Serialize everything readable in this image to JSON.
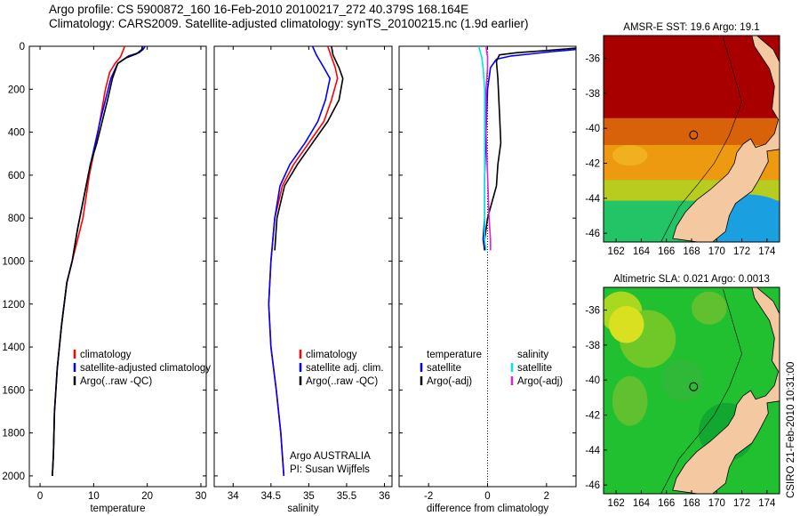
{
  "header": {
    "line1": "Argo profile: CS 5900872_160 16-Feb-2010 20100217_272 40.379S 168.164E",
    "line2": "Climatology: CARS2009. Satellite-adjusted climatology: synTS_20100215.nc (1.9d earlier)"
  },
  "colors": {
    "climatology": "#ff0000",
    "satellite": "#0000ff",
    "argo": "#000000",
    "cyan": "#00e5e5",
    "magenta": "#e020e0"
  },
  "chart_data": [
    {
      "type": "line",
      "id": "temperature",
      "xlabel": "temperature",
      "xlim": [
        -2,
        31
      ],
      "xticks": [
        0,
        10,
        20,
        30
      ],
      "ylim": [
        0,
        2050
      ],
      "yticks": [
        0,
        200,
        400,
        600,
        800,
        1000,
        1200,
        1400,
        1600,
        1800,
        2000
      ],
      "y_reversed": true,
      "legend_position": "lower-middle",
      "legend": [
        {
          "label": "climatology",
          "color": "#ff0000"
        },
        {
          "label": "satellite-adjusted climatology",
          "color": "#0000ff"
        },
        {
          "label": "Argo(..raw -QC)",
          "color": "#000000"
        }
      ],
      "series": [
        {
          "name": "climatology",
          "color": "#ff0000",
          "x": [
            15.8,
            15.5,
            15.0,
            14.0,
            13.0,
            12.2,
            11.5,
            10.8,
            10.0,
            9.2,
            8.0,
            7.0,
            6.0,
            5.0,
            4.0,
            3.2,
            2.7,
            2.5,
            2.3
          ],
          "y": [
            0,
            20,
            50,
            80,
            120,
            200,
            300,
            400,
            500,
            600,
            800,
            900,
            1000,
            1100,
            1300,
            1500,
            1700,
            1900,
            2000
          ]
        },
        {
          "name": "satellite-adjusted climatology",
          "color": "#0000ff",
          "x": [
            19.6,
            19.2,
            18.5,
            16.5,
            14.5,
            13.2,
            12.2,
            11.2,
            10.3,
            9.4,
            8.2,
            7.0,
            6.0,
            5.0,
            4.0,
            3.2,
            2.7,
            2.5,
            2.3
          ],
          "y": [
            0,
            15,
            30,
            45,
            80,
            150,
            250,
            350,
            450,
            550,
            700,
            850,
            1000,
            1100,
            1300,
            1500,
            1700,
            1900,
            2000
          ]
        },
        {
          "name": "Argo(..raw -QC)",
          "color": "#000000",
          "x": [
            19.1,
            19.0,
            18.0,
            16.0,
            14.5,
            13.5,
            12.6,
            11.6,
            10.6,
            9.4,
            8.2,
            7.0,
            6.0,
            5.0,
            4.0,
            3.2,
            2.7,
            2.5,
            2.3
          ],
          "y": [
            0,
            15,
            35,
            55,
            80,
            150,
            250,
            350,
            450,
            550,
            700,
            850,
            1000,
            1100,
            1300,
            1500,
            1700,
            1900,
            2000
          ]
        }
      ]
    },
    {
      "type": "line",
      "id": "salinity",
      "xlabel": "salinity",
      "xlim": [
        33.75,
        36.1
      ],
      "xticks": [
        34,
        34.5,
        35,
        35.5,
        36
      ],
      "ylim": [
        0,
        2050
      ],
      "y_reversed": true,
      "legend_position": "lower-right",
      "legend": [
        {
          "label": "climatology",
          "color": "#ff0000"
        },
        {
          "label": "satellite adj. clim.",
          "color": "#0000ff"
        },
        {
          "label": "Argo(..raw -QC)",
          "color": "#000000"
        }
      ],
      "annotation": [
        "Argo AUSTRALIA",
        "PI: Susan Wijffels"
      ],
      "series": [
        {
          "name": "climatology",
          "color": "#ff0000",
          "x": [
            35.25,
            35.3,
            35.35,
            35.38,
            35.3,
            35.2,
            35.0,
            34.8,
            34.65,
            34.55,
            34.5,
            34.47,
            34.5,
            34.57,
            34.63,
            34.67
          ],
          "y": [
            0,
            50,
            100,
            150,
            250,
            350,
            450,
            550,
            650,
            800,
            1000,
            1200,
            1400,
            1600,
            1800,
            2000
          ]
        },
        {
          "name": "satellite adj. clim.",
          "color": "#0000ff",
          "x": [
            35.05,
            35.1,
            35.2,
            35.28,
            35.22,
            35.12,
            34.95,
            34.75,
            34.62,
            34.55,
            34.5,
            34.47,
            34.5,
            34.57,
            34.63,
            34.67
          ],
          "y": [
            0,
            40,
            100,
            150,
            250,
            350,
            450,
            550,
            650,
            800,
            1000,
            1200,
            1400,
            1600,
            1800,
            2000
          ]
        },
        {
          "name": "Argo(..raw -QC)",
          "color": "#000000",
          "x": [
            35.3,
            35.32,
            35.4,
            35.45,
            35.4,
            35.25,
            35.05,
            34.85,
            34.68,
            34.58,
            34.55
          ],
          "y": [
            0,
            40,
            100,
            150,
            250,
            350,
            450,
            550,
            650,
            800,
            950
          ]
        }
      ]
    },
    {
      "type": "line",
      "id": "difference",
      "xlabel": "difference from climatology",
      "xlim": [
        -3,
        3
      ],
      "xticks": [
        -2,
        0,
        2
      ],
      "ylim": [
        0,
        2050
      ],
      "y_reversed": true,
      "legend_position": "lower",
      "legend": [
        {
          "label": "temperature",
          "color": ""
        },
        {
          "label": "satellite",
          "color": "#0000ff"
        },
        {
          "label": "Argo(-adj)",
          "color": "#000000"
        },
        {
          "label": "salinity",
          "color": ""
        },
        {
          "label": "satellite",
          "color": "#00e5e5"
        },
        {
          "label": "Argo(-adj)",
          "color": "#e020e0"
        }
      ],
      "series": [
        {
          "name": "temperature satellite",
          "color": "#0000ff",
          "x": [
            3.5,
            3.0,
            2.2,
            1.5,
            0.8,
            0.3,
            0.1,
            0.0,
            -0.05,
            -0.1,
            -0.1,
            -0.15,
            -0.1
          ],
          "y": [
            5,
            15,
            25,
            35,
            45,
            60,
            100,
            200,
            400,
            600,
            800,
            900,
            950
          ]
        },
        {
          "name": "temperature Argo(-adj)",
          "color": "#000000",
          "x": [
            3.3,
            2.0,
            1.0,
            0.4,
            0.3,
            0.35,
            0.4,
            0.45,
            0.35,
            0.3,
            0.0,
            -0.1,
            -0.1
          ],
          "y": [
            5,
            20,
            30,
            40,
            70,
            150,
            300,
            450,
            550,
            650,
            800,
            900,
            950
          ]
        },
        {
          "name": "salinity satellite",
          "color": "#00e5e5",
          "x": [
            -0.3,
            -0.2,
            -0.15,
            -0.1,
            -0.1,
            -0.1,
            -0.1,
            -0.1,
            -0.05
          ],
          "y": [
            0,
            50,
            100,
            200,
            400,
            600,
            800,
            900,
            950
          ]
        },
        {
          "name": "salinity Argo(-adj)",
          "color": "#e020e0",
          "x": [
            -0.05,
            0.0,
            0.0,
            -0.05,
            -0.05,
            0.0,
            0.05,
            0.1,
            0.1
          ],
          "y": [
            0,
            50,
            100,
            200,
            400,
            600,
            800,
            900,
            950
          ]
        }
      ]
    },
    {
      "type": "heatmap",
      "id": "sst-map",
      "title": "AMSR-E SST: 19.6 Argo: 19.1",
      "xticks": [
        162,
        164,
        166,
        168,
        170,
        172,
        174
      ],
      "yticks": [
        -36,
        -38,
        -40,
        -42,
        -44,
        -46
      ],
      "xlim": [
        161,
        175
      ],
      "ylim": [
        -46.5,
        -34.7
      ],
      "marker": {
        "lon": 168.164,
        "lat": -40.379
      }
    },
    {
      "type": "heatmap",
      "id": "sla-map",
      "title": "Altimetric SLA: 0.021 Argo: 0.0013",
      "xticks": [
        162,
        164,
        166,
        168,
        170,
        172,
        174
      ],
      "yticks": [
        -36,
        -38,
        -40,
        -42,
        -44,
        -46
      ],
      "xlim": [
        161,
        175
      ],
      "ylim": [
        -46.5,
        -34.7
      ],
      "marker": {
        "lon": 168.164,
        "lat": -40.379
      }
    }
  ],
  "footer_label": "CSIRO 21-Feb-2010 10:31:00"
}
